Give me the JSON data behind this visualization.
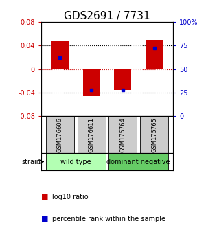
{
  "title": "GDS2691 / 7731",
  "samples": [
    "GSM176606",
    "GSM176611",
    "GSM175764",
    "GSM175765"
  ],
  "log10_ratios": [
    0.047,
    -0.046,
    -0.035,
    0.05
  ],
  "percentile_ranks": [
    0.62,
    0.28,
    0.28,
    0.72
  ],
  "groups": [
    {
      "name": "wild type",
      "indices": [
        0,
        1
      ],
      "color": "#b3ffb3"
    },
    {
      "name": "dominant negative",
      "indices": [
        2,
        3
      ],
      "color": "#66cc66"
    }
  ],
  "ylim": [
    -0.08,
    0.08
  ],
  "yticks_left": [
    -0.08,
    -0.04,
    0,
    0.04,
    0.08
  ],
  "yticks_right": [
    0,
    25,
    50,
    75,
    100
  ],
  "bar_color": "#cc0000",
  "dot_color": "#0000cc",
  "hline_color": "#cc0000",
  "dot_hline_color": "#cc0000",
  "grid_color": "#000000",
  "sample_box_color": "#cccccc",
  "title_fontsize": 11,
  "tick_fontsize": 7,
  "label_fontsize": 7,
  "legend_fontsize": 7
}
